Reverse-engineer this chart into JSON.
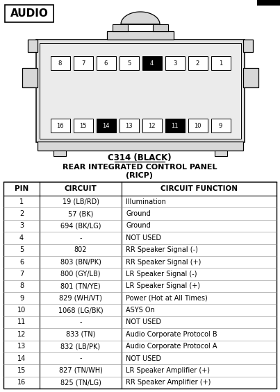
{
  "title_box": "AUDIO",
  "connector_title": "C314 (BLACK)",
  "connector_subtitle1": "REAR INTEGRATED CONTROL PANEL",
  "connector_subtitle2": "(RICP)",
  "table_headers": [
    "PIN",
    "CIRCUIT",
    "CIRCUIT FUNCTION"
  ],
  "pins": [
    1,
    2,
    3,
    4,
    5,
    6,
    7,
    8,
    9,
    10,
    11,
    12,
    13,
    14,
    15,
    16
  ],
  "circuits": [
    "19 (LB/RD)",
    "57 (BK)",
    "694 (BK/LG)",
    "-",
    "802",
    "803 (BN/PK)",
    "800 (GY/LB)",
    "801 (TN/YE)",
    "829 (WH/VT)",
    "1068 (LG/BK)",
    "-",
    "833 (TN)",
    "832 (LB/PK)",
    "-",
    "827 (TN/WH)",
    "825 (TN/LG)"
  ],
  "functions": [
    "Illumination",
    "Ground",
    "Ground",
    "NOT USED",
    "RR Speaker Signal (-)",
    "RR Speaker Signal (+)",
    "LR Speaker Signal (-)",
    "LR Speaker Signal (+)",
    "Power (Hot at All Times)",
    "ASYS On",
    "NOT USED",
    "Audio Corporate Protocol B",
    "Audio Corporate Protocol A",
    "NOT USED",
    "LR Speaker Amplifier (+)",
    "RR Speaker Amplifier (+)"
  ],
  "black_pins": [
    4,
    11,
    14
  ],
  "top_row": [
    8,
    7,
    6,
    5,
    4,
    3,
    2,
    1
  ],
  "bottom_row": [
    16,
    15,
    14,
    13,
    12,
    11,
    10,
    9
  ]
}
